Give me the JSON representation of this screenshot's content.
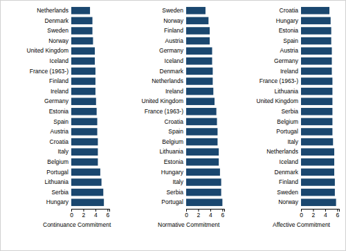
{
  "chart_data": [
    {
      "type": "bar",
      "orientation": "horizontal",
      "xlabel": "Continuance Commitment",
      "categories": [
        "Netherlands",
        "Denmark",
        "Sweden",
        "Norway",
        "United Kingdom",
        "Iceland",
        "France (1963-)",
        "Finland",
        "Ireland",
        "Germany",
        "Estonia",
        "Spain",
        "Austria",
        "Croatia",
        "Italy",
        "Belgium",
        "Portugal",
        "Lithuania",
        "Serbia",
        "Hungary"
      ],
      "values": [
        3.1,
        3.5,
        3.5,
        3.6,
        3.9,
        3.9,
        4.0,
        4.0,
        4.0,
        4.1,
        4.2,
        4.3,
        4.3,
        4.4,
        4.4,
        4.4,
        4.8,
        5.0,
        5.3,
        5.4
      ],
      "color": "#1a476f",
      "xlim": [
        0,
        6.3
      ],
      "xticks": [
        0,
        2,
        4,
        6
      ]
    },
    {
      "type": "bar",
      "orientation": "horizontal",
      "xlabel": "Normative Commitment",
      "categories": [
        "Sweden",
        "Norway",
        "Finland",
        "Austria",
        "Germany",
        "Iceland",
        "Denmark",
        "Netherlands",
        "Ireland",
        "United Kingdom",
        "France (1963-)",
        "Croatia",
        "Spain",
        "Belgium",
        "Lithuania",
        "Estonia",
        "Hungary",
        "Italy",
        "Serbia",
        "Portugal"
      ],
      "values": [
        3.2,
        3.7,
        3.9,
        3.9,
        4.3,
        4.3,
        4.4,
        4.4,
        4.5,
        4.7,
        5.0,
        5.1,
        5.2,
        5.2,
        5.4,
        5.4,
        5.6,
        5.8,
        5.8,
        6.0
      ],
      "color": "#1a476f",
      "xlim": [
        0,
        6.3
      ],
      "xticks": [
        0,
        2,
        4,
        6
      ]
    },
    {
      "type": "bar",
      "orientation": "horizontal",
      "xlabel": "Affective Commitment",
      "categories": [
        "Croatia",
        "Hungary",
        "Estonia",
        "Spain",
        "Austria",
        "Germany",
        "Ireland",
        "France (1963-)",
        "Lithuania",
        "United Kingdom",
        "Serbia",
        "Belgium",
        "Portugal",
        "Italy",
        "Netherlands",
        "Iceland",
        "Denmark",
        "Finland",
        "Sweden",
        "Norway"
      ],
      "values": [
        4.7,
        4.9,
        5.0,
        5.0,
        5.1,
        5.1,
        5.1,
        5.2,
        5.2,
        5.2,
        5.2,
        5.2,
        5.2,
        5.3,
        5.5,
        5.5,
        5.5,
        5.6,
        5.6,
        5.8
      ],
      "color": "#1a476f",
      "xlim": [
        0,
        6.3
      ],
      "xticks": [
        0,
        2,
        4,
        6
      ]
    }
  ]
}
